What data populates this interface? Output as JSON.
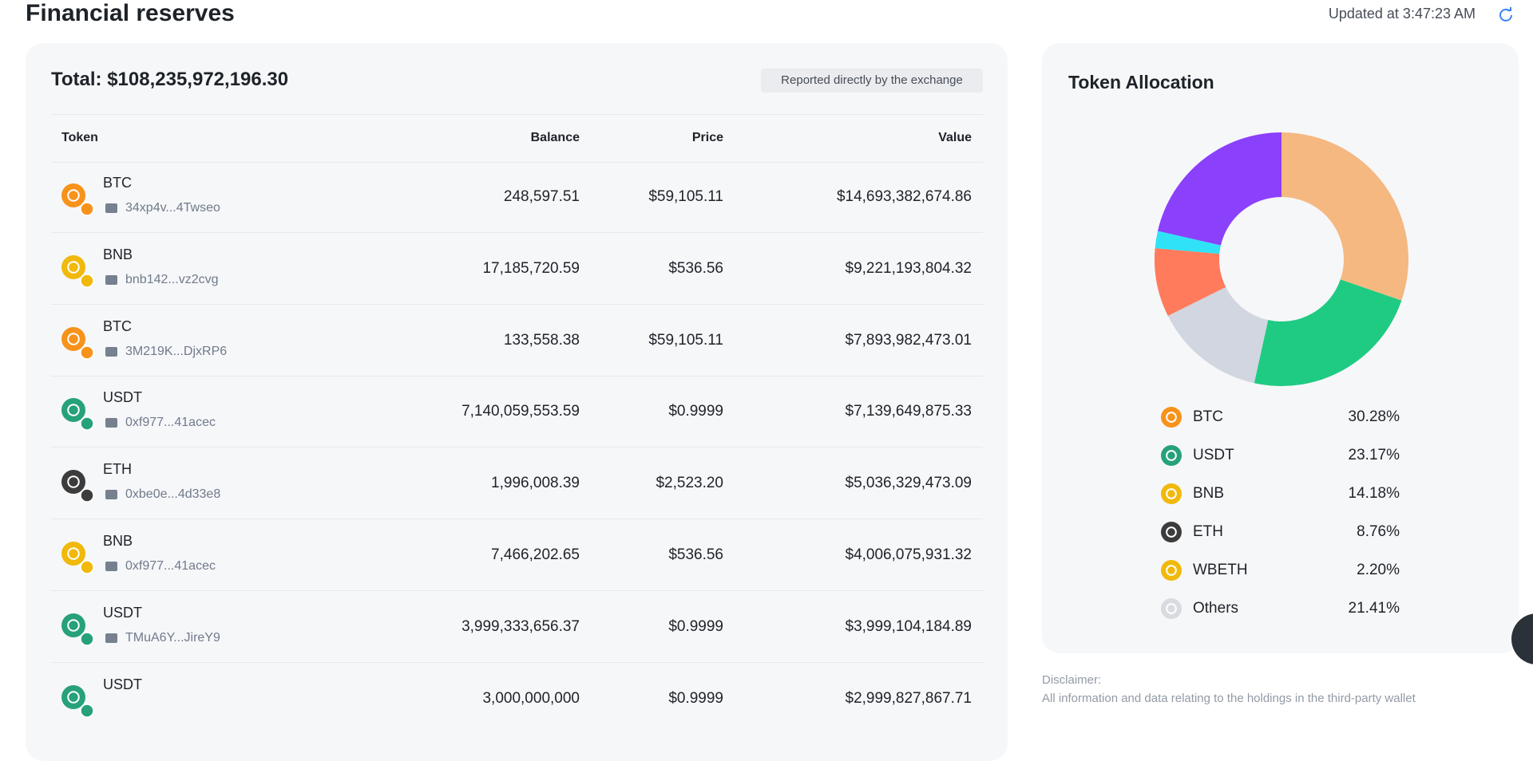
{
  "header": {
    "title": "Financial reserves",
    "updated": "Updated at 3:47:23 AM"
  },
  "reserves": {
    "total": "Total: $108,235,972,196.30",
    "badge": "Reported directly by the exchange",
    "columns": [
      "Token",
      "Balance",
      "Price",
      "Value"
    ],
    "rows": [
      {
        "token": "BTC",
        "address": "34xp4v...4Twseo",
        "balance": "248,597.51",
        "price": "$59,105.11",
        "value": "$14,693,382,674.86",
        "icon_color": "#f7931a"
      },
      {
        "token": "BNB",
        "address": "bnb142...vz2cvg",
        "balance": "17,185,720.59",
        "price": "$536.56",
        "value": "$9,221,193,804.32",
        "icon_color": "#f0b90b"
      },
      {
        "token": "BTC",
        "address": "3M219K...DjxRP6",
        "balance": "133,558.38",
        "price": "$59,105.11",
        "value": "$7,893,982,473.01",
        "icon_color": "#f7931a"
      },
      {
        "token": "USDT",
        "address": "0xf977...41acec",
        "balance": "7,140,059,553.59",
        "price": "$0.9999",
        "value": "$7,139,649,875.33",
        "icon_color": "#26a17b"
      },
      {
        "token": "ETH",
        "address": "0xbe0e...4d33e8",
        "balance": "1,996,008.39",
        "price": "$2,523.20",
        "value": "$5,036,329,473.09",
        "icon_color": "#3c3c3d"
      },
      {
        "token": "BNB",
        "address": "0xf977...41acec",
        "balance": "7,466,202.65",
        "price": "$536.56",
        "value": "$4,006,075,931.32",
        "icon_color": "#f0b90b"
      },
      {
        "token": "USDT",
        "address": "TMuA6Y...JireY9",
        "balance": "3,999,333,656.37",
        "price": "$0.9999",
        "value": "$3,999,104,184.89",
        "icon_color": "#26a17b"
      },
      {
        "token": "USDT",
        "balance": "3,000,000,000",
        "price": "$0.9999",
        "value": "$2,999,827,867.71",
        "icon_color": "#26a17b"
      }
    ]
  },
  "allocation": {
    "title": "Token Allocation",
    "items": [
      {
        "name": "BTC",
        "value": 30.28,
        "label": "30.28%",
        "color": "#f5b880",
        "icon_color": "#f7931a"
      },
      {
        "name": "USDT",
        "value": 23.17,
        "label": "23.17%",
        "color": "#1fcb82",
        "icon_color": "#26a17b"
      },
      {
        "name": "BNB",
        "value": 14.18,
        "label": "14.18%",
        "color": "#d2d6e0",
        "icon_color": "#f0b90b"
      },
      {
        "name": "ETH",
        "value": 8.76,
        "label": "8.76%",
        "color": "#ff7b5c",
        "icon_color": "#3c3c3d"
      },
      {
        "name": "WBETH",
        "value": 2.2,
        "label": "2.20%",
        "color": "#2fe2f5",
        "icon_color": "#f0b90b"
      },
      {
        "name": "Others",
        "value": 21.41,
        "label": "21.41%",
        "color": "#8b40fb",
        "icon_color": "#d9dbe0"
      }
    ]
  },
  "disclaimer": {
    "title": "Disclaimer:",
    "text": "All information and data relating to the holdings in the third-party wallet"
  }
}
